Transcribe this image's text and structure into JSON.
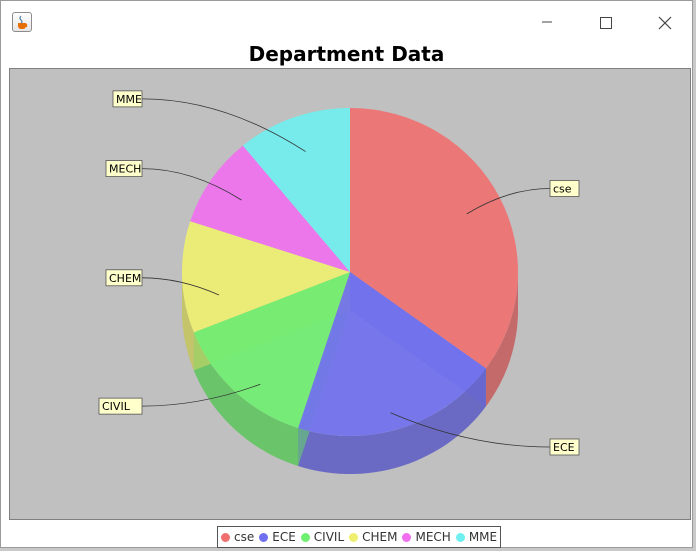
{
  "window": {
    "title": "",
    "app_icon": "java-cup-icon",
    "controls": [
      "minimize-icon",
      "maximize-icon",
      "close-icon"
    ]
  },
  "chart_data": {
    "type": "pie",
    "style": "3d",
    "title": "Department Data",
    "categories": [
      "cse",
      "ECE",
      "CIVIL",
      "CHEM",
      "MECH",
      "MME"
    ],
    "values": [
      35,
      20,
      14,
      11,
      9,
      11
    ],
    "colors": [
      "#ef6f6f",
      "#6f6fef",
      "#6fef6f",
      "#efef6f",
      "#ef6fef",
      "#6fefef"
    ],
    "background": "#c0c0c0",
    "legend": {
      "position": "bottom",
      "labels": [
        "cse",
        "ECE",
        "CIVIL",
        "CHEM",
        "MECH",
        "MME"
      ]
    }
  }
}
